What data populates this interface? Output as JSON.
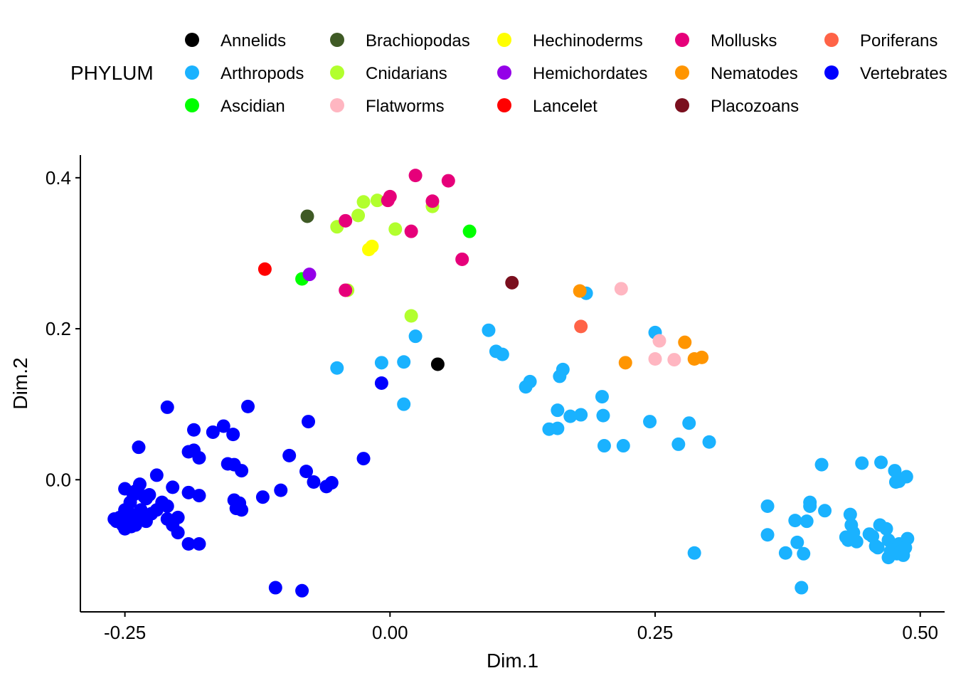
{
  "legend": {
    "title": "PHYLUM",
    "entries": [
      {
        "name": "Annelids",
        "color": "#000000"
      },
      {
        "name": "Arthropods",
        "color": "#1AB2FF"
      },
      {
        "name": "Ascidian",
        "color": "#00FF00"
      },
      {
        "name": "Brachiopodas",
        "color": "#3F5A25"
      },
      {
        "name": "Cnidarians",
        "color": "#B2FF2E"
      },
      {
        "name": "Flatworms",
        "color": "#FFB6C1"
      },
      {
        "name": "Hechinoderms",
        "color": "#FFFF00"
      },
      {
        "name": "Hemichordates",
        "color": "#9400E8"
      },
      {
        "name": "Lancelet",
        "color": "#FF0000"
      },
      {
        "name": "Mollusks",
        "color": "#E6007A"
      },
      {
        "name": "Nematodes",
        "color": "#FF9500"
      },
      {
        "name": "Placozoans",
        "color": "#7A0F1E"
      },
      {
        "name": "Poriferans",
        "color": "#FF6347"
      },
      {
        "name": "Vertebrates",
        "color": "#0000FF"
      }
    ]
  },
  "chart_data": {
    "type": "scatter",
    "xlabel": "Dim.1",
    "ylabel": "Dim.2",
    "xlim": [
      -0.292,
      0.523
    ],
    "ylim": [
      -0.175,
      0.43
    ],
    "xticks": [
      -0.25,
      0.0,
      0.25,
      0.5
    ],
    "xtick_labels": [
      "-0.25",
      "0.00",
      "0.25",
      "0.50"
    ],
    "yticks": [
      0.0,
      0.2,
      0.4
    ],
    "ytick_labels": [
      "0.0",
      "0.2",
      "0.4"
    ],
    "grid": false,
    "legend_position": "top",
    "series": [
      {
        "name": "Annelids",
        "points": [
          [
            0.045,
            0.153
          ]
        ]
      },
      {
        "name": "Arthropods",
        "points": [
          [
            -0.05,
            0.148
          ],
          [
            -0.008,
            0.155
          ],
          [
            0.013,
            0.156
          ],
          [
            0.013,
            0.1
          ],
          [
            0.024,
            0.19
          ],
          [
            0.093,
            0.198
          ],
          [
            0.1,
            0.17
          ],
          [
            0.106,
            0.166
          ],
          [
            0.128,
            0.123
          ],
          [
            0.132,
            0.13
          ],
          [
            0.16,
            0.137
          ],
          [
            0.163,
            0.146
          ],
          [
            0.15,
            0.067
          ],
          [
            0.158,
            0.068
          ],
          [
            0.158,
            0.092
          ],
          [
            0.17,
            0.084
          ],
          [
            0.18,
            0.086
          ],
          [
            0.2,
            0.11
          ],
          [
            0.201,
            0.085
          ],
          [
            0.202,
            0.045
          ],
          [
            0.22,
            0.045
          ],
          [
            0.245,
            0.077
          ],
          [
            0.272,
            0.047
          ],
          [
            0.282,
            0.075
          ],
          [
            0.301,
            0.05
          ],
          [
            0.185,
            0.247
          ],
          [
            0.25,
            0.195
          ],
          [
            0.287,
            -0.097
          ],
          [
            0.356,
            -0.035
          ],
          [
            0.356,
            -0.073
          ],
          [
            0.373,
            -0.097
          ],
          [
            0.382,
            -0.054
          ],
          [
            0.384,
            -0.083
          ],
          [
            0.388,
            -0.143
          ],
          [
            0.39,
            -0.098
          ],
          [
            0.393,
            -0.055
          ],
          [
            0.396,
            -0.03
          ],
          [
            0.396,
            -0.035
          ],
          [
            0.41,
            -0.041
          ],
          [
            0.407,
            0.02
          ],
          [
            0.43,
            -0.076
          ],
          [
            0.432,
            -0.08
          ],
          [
            0.434,
            -0.046
          ],
          [
            0.435,
            -0.06
          ],
          [
            0.437,
            -0.07
          ],
          [
            0.44,
            -0.082
          ],
          [
            0.445,
            0.022
          ],
          [
            0.452,
            -0.072
          ],
          [
            0.455,
            -0.075
          ],
          [
            0.458,
            -0.088
          ],
          [
            0.46,
            -0.09
          ],
          [
            0.462,
            -0.06
          ],
          [
            0.463,
            0.023
          ],
          [
            0.468,
            -0.065
          ],
          [
            0.47,
            -0.08
          ],
          [
            0.47,
            -0.103
          ],
          [
            0.472,
            -0.095
          ],
          [
            0.475,
            -0.09
          ],
          [
            0.476,
            0.012
          ],
          [
            0.477,
            -0.003
          ],
          [
            0.478,
            -0.098
          ],
          [
            0.48,
            -0.002
          ],
          [
            0.48,
            -0.085
          ],
          [
            0.482,
            -0.095
          ],
          [
            0.484,
            -0.1
          ],
          [
            0.487,
            0.004
          ],
          [
            0.488,
            -0.078
          ],
          [
            0.486,
            -0.09
          ]
        ]
      },
      {
        "name": "Ascidian",
        "points": [
          [
            -0.083,
            0.266
          ],
          [
            0.075,
            0.329
          ]
        ]
      },
      {
        "name": "Brachiopodas",
        "points": [
          [
            -0.078,
            0.349
          ]
        ]
      },
      {
        "name": "Cnidarians",
        "points": [
          [
            -0.05,
            0.335
          ],
          [
            -0.03,
            0.35
          ],
          [
            -0.025,
            0.368
          ],
          [
            -0.012,
            0.37
          ],
          [
            0.005,
            0.332
          ],
          [
            0.04,
            0.362
          ],
          [
            -0.04,
            0.251
          ],
          [
            0.02,
            0.217
          ]
        ]
      },
      {
        "name": "Flatworms",
        "points": [
          [
            0.218,
            0.253
          ],
          [
            0.25,
            0.16
          ],
          [
            0.254,
            0.184
          ],
          [
            0.268,
            0.159
          ]
        ]
      },
      {
        "name": "Hechinoderms",
        "points": [
          [
            -0.02,
            0.305
          ],
          [
            -0.017,
            0.309
          ]
        ]
      },
      {
        "name": "Hemichordates",
        "points": [
          [
            -0.076,
            0.272
          ]
        ]
      },
      {
        "name": "Lancelet",
        "points": [
          [
            -0.118,
            0.279
          ]
        ]
      },
      {
        "name": "Mollusks",
        "points": [
          [
            -0.042,
            0.251
          ],
          [
            -0.042,
            0.343
          ],
          [
            -0.002,
            0.37
          ],
          [
            0.0,
            0.375
          ],
          [
            0.02,
            0.329
          ],
          [
            0.024,
            0.403
          ],
          [
            0.04,
            0.369
          ],
          [
            0.055,
            0.396
          ],
          [
            0.068,
            0.292
          ]
        ]
      },
      {
        "name": "Nematodes",
        "points": [
          [
            0.179,
            0.25
          ],
          [
            0.222,
            0.155
          ],
          [
            0.278,
            0.182
          ],
          [
            0.287,
            0.16
          ],
          [
            0.294,
            0.162
          ]
        ]
      },
      {
        "name": "Placozoans",
        "points": [
          [
            0.115,
            0.261
          ]
        ]
      },
      {
        "name": "Poriferans",
        "points": [
          [
            0.18,
            0.203
          ]
        ]
      },
      {
        "name": "Vertebrates",
        "points": [
          [
            -0.21,
            0.096
          ],
          [
            -0.134,
            0.097
          ],
          [
            -0.237,
            0.043
          ],
          [
            -0.185,
            0.066
          ],
          [
            -0.167,
            0.063
          ],
          [
            -0.157,
            0.071
          ],
          [
            -0.148,
            0.06
          ],
          [
            -0.19,
            0.037
          ],
          [
            -0.185,
            0.039
          ],
          [
            -0.18,
            0.029
          ],
          [
            -0.153,
            0.021
          ],
          [
            -0.147,
            0.02
          ],
          [
            -0.14,
            0.012
          ],
          [
            -0.077,
            0.077
          ],
          [
            -0.095,
            0.032
          ],
          [
            -0.079,
            0.011
          ],
          [
            -0.072,
            -0.003
          ],
          [
            -0.06,
            -0.009
          ],
          [
            -0.055,
            -0.004
          ],
          [
            -0.025,
            0.028
          ],
          [
            -0.008,
            0.128
          ],
          [
            -0.22,
            0.006
          ],
          [
            -0.205,
            -0.01
          ],
          [
            -0.19,
            -0.017
          ],
          [
            -0.18,
            -0.021
          ],
          [
            -0.147,
            -0.027
          ],
          [
            -0.145,
            -0.038
          ],
          [
            -0.142,
            -0.031
          ],
          [
            -0.14,
            -0.04
          ],
          [
            -0.12,
            -0.023
          ],
          [
            -0.103,
            -0.014
          ],
          [
            -0.108,
            -0.143
          ],
          [
            -0.083,
            -0.147
          ],
          [
            -0.19,
            -0.085
          ],
          [
            -0.18,
            -0.085
          ],
          [
            -0.2,
            -0.07
          ],
          [
            -0.205,
            -0.06
          ],
          [
            -0.2,
            -0.05
          ],
          [
            -0.21,
            -0.052
          ],
          [
            -0.215,
            -0.03
          ],
          [
            -0.21,
            -0.035
          ],
          [
            -0.22,
            -0.04
          ],
          [
            -0.225,
            -0.045
          ],
          [
            -0.23,
            -0.055
          ],
          [
            -0.227,
            -0.02
          ],
          [
            -0.23,
            -0.025
          ],
          [
            -0.235,
            -0.04
          ],
          [
            -0.238,
            -0.05
          ],
          [
            -0.24,
            -0.06
          ],
          [
            -0.245,
            -0.03
          ],
          [
            -0.245,
            -0.045
          ],
          [
            -0.248,
            -0.055
          ],
          [
            -0.25,
            -0.012
          ],
          [
            -0.25,
            -0.04
          ],
          [
            -0.252,
            -0.06
          ],
          [
            -0.255,
            -0.05
          ],
          [
            -0.258,
            -0.055
          ],
          [
            -0.26,
            -0.052
          ],
          [
            -0.236,
            -0.006
          ],
          [
            -0.24,
            -0.015
          ],
          [
            -0.242,
            -0.02
          ],
          [
            -0.244,
            -0.062
          ],
          [
            -0.25,
            -0.065
          ],
          [
            -0.247,
            -0.058
          ],
          [
            -0.232,
            -0.022
          ]
        ]
      }
    ]
  }
}
